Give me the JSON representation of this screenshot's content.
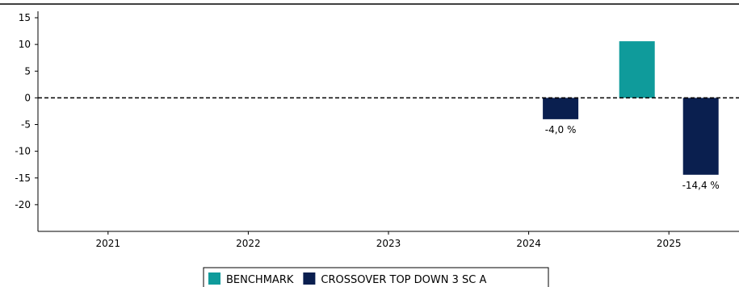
{
  "chart_data": {
    "type": "bar",
    "title": "",
    "xlabel": "",
    "ylabel": "",
    "categories": [
      "2021",
      "2022",
      "2023",
      "2024",
      "2025"
    ],
    "series": [
      {
        "name": "BENCHMARK",
        "color": "#0f9b9b",
        "values": [
          null,
          null,
          null,
          null,
          10.6
        ],
        "labels": [
          null,
          null,
          null,
          null,
          null
        ]
      },
      {
        "name": "CROSSOVER TOP DOWN 3 SC A",
        "color": "#0a1f4f",
        "values": [
          null,
          null,
          null,
          -4.0,
          -14.4
        ],
        "labels": [
          null,
          null,
          null,
          "-4,0 %",
          "-14,4 %"
        ]
      }
    ],
    "ylim": [
      -25,
      15
    ],
    "yticks": [
      15,
      10,
      5,
      0,
      -5,
      -10,
      -15,
      -20
    ],
    "grid": false,
    "zero_line": "dashed",
    "legend_position": "bottom"
  }
}
